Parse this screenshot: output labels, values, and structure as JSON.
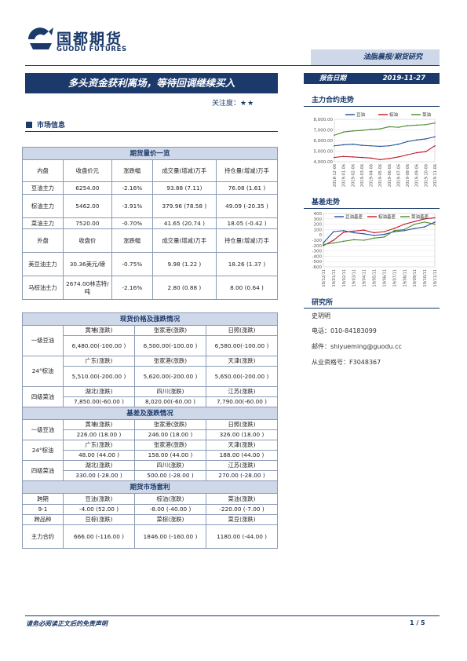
{
  "header": {
    "logo_cn": "国都期货",
    "logo_en": "GUODU FUTURES",
    "report_type": "油脂晨报/期货研究",
    "title": "多头资金获利离场，等待回调继续买入",
    "date_label": "报告日期",
    "date_value": "2019-11-27",
    "attention_label": "关注度：",
    "attention_stars": "★★"
  },
  "section": {
    "title": "市场信息"
  },
  "tables": {
    "futures": {
      "title": "期货量价一览",
      "domestic_header": [
        "内盘",
        "收盘价元",
        "涨跌幅",
        "成交量(增减)万手",
        "持仓量(增减)万手"
      ],
      "domestic_rows": [
        [
          "豆油主力",
          "6254.00",
          "-2.16%",
          "93.88 (7.11)",
          "76.08 (1.61 )"
        ],
        [
          "棕油主力",
          "5462.00",
          "-3.91%",
          "379.96 (78.58 )",
          "49.09 (-20.35 )"
        ],
        [
          "菜油主力",
          "7520.00",
          "-0.70%",
          "41.65 (20.74 )",
          "18.05 (-0.42 )"
        ]
      ],
      "foreign_header": [
        "外盘",
        "收盘价",
        "涨跌幅",
        "成交量(增减)万手",
        "持仓量(增减)万手"
      ],
      "foreign_rows": [
        [
          "美豆油主力",
          "30.36美元/磅",
          "-0.75%",
          "9.98 (1.22 )",
          "18.26 (1.37 )"
        ],
        [
          "马棕油主力",
          "2674.00林吉特/吨",
          "-2.16%",
          "2.80 (0.88 )",
          "8.00 (0.64 )"
        ]
      ]
    },
    "spot": {
      "title": "现货价格及涨跌情况",
      "rows": [
        {
          "product": "一级豆油",
          "h": [
            "黄埔(涨跌)",
            "张家港(涨跌)",
            "日照(涨跌)"
          ],
          "v": [
            "6,480.00(-100.00 )",
            "6,500.00(-100.00 )",
            "6,580.00(-100.00 )"
          ]
        },
        {
          "product": "24°棕油",
          "h": [
            "广东(涨跌)",
            "张家港(涨跌)",
            "天津(涨跌)"
          ],
          "v": [
            "5,510.00(-200.00 )",
            "5,620.00(-200.00 )",
            "5,650.00(-200.00 )"
          ]
        },
        {
          "product": "四级菜油",
          "h": [
            "湖北(涨跌)",
            "四川(涨跌)",
            "江苏(涨跌)"
          ],
          "v": [
            "7,850.00(-60.00 )",
            "8,020.00(-60.00 )",
            "7,790.00(-60.00 )"
          ]
        }
      ]
    },
    "basis": {
      "title": "基差及涨跌情况",
      "rows": [
        {
          "product": "一级豆油",
          "h": [
            "黄埔(涨跌)",
            "张家港(涨跌)",
            "日照(涨跌)"
          ],
          "v": [
            "226.00 (18.00 )",
            "246.00 (18.00 )",
            "326.00 (18.00 )"
          ]
        },
        {
          "product": "24°棕油",
          "h": [
            "广东(涨跌)",
            "张家港(涨跌)",
            "天津(涨跌)"
          ],
          "v": [
            "48.00 (44.00 )",
            "158.00 (44.00 )",
            "188.00 (44.00 )"
          ]
        },
        {
          "product": "四级菜油",
          "h": [
            "湖北(涨跌)",
            "四川(涨跌)",
            "江苏(涨跌)"
          ],
          "v": [
            "330.00 (-28.00 )",
            "500.00 (-28.00 )",
            "270.00 (-28.00 )"
          ]
        }
      ]
    },
    "arbitrage": {
      "title": "期货市场套利",
      "row1_header": [
        "跨期",
        "豆油(涨跌)",
        "棕油(涨跌)",
        "菜油(涨跌)"
      ],
      "row1": [
        "9-1",
        "-4.00 (52.00 )",
        "-8.00    (-40.00 )",
        "-220.00    (-7.00 )"
      ],
      "row2_header": [
        "跨品种",
        "豆棕(涨跌)",
        "菜棕(涨跌)",
        "菜豆(涨跌)"
      ],
      "row2": [
        "主力合约",
        "666.00 (-116.00 )",
        "1846.00 (-160.00 )",
        "1180.00 (-44.00 )"
      ]
    }
  },
  "sidebar": {
    "trend_title": "主力合约走势",
    "basis_title": "基差走势",
    "research_title": "研究所",
    "analyst": "史玥明",
    "phone": "电话：010-84183099",
    "email": "邮件：shiyueming@guodu.cc",
    "license": "从业资格号：F3048367"
  },
  "chart_data": [
    {
      "type": "line",
      "title": "主力合约走势",
      "x": [
        "2018-12-06",
        "2019-01-06",
        "2019-02-06",
        "2019-03-06",
        "2019-04-06",
        "2019-05-06",
        "2019-06-06",
        "2019-07-06",
        "2019-08-06",
        "2019-09-06",
        "2019-10-06",
        "2019-11-06"
      ],
      "series": [
        {
          "name": "豆油",
          "color": "#1f4e9c",
          "values": [
            5500,
            5600,
            5650,
            5550,
            5500,
            5450,
            5500,
            5650,
            5900,
            6050,
            6150,
            6350
          ]
        },
        {
          "name": "棕油",
          "color": "#c0182b",
          "values": [
            4400,
            4500,
            4450,
            4400,
            4350,
            4200,
            4300,
            4450,
            4650,
            4850,
            4950,
            5500
          ]
        },
        {
          "name": "菜油",
          "color": "#4a8a2a",
          "values": [
            6500,
            6800,
            6900,
            6950,
            7050,
            7100,
            7300,
            7250,
            7400,
            7450,
            7500,
            7650
          ]
        }
      ],
      "yticks": [
        "8,000.00",
        "7,000.00",
        "6,000.00",
        "5,000.00",
        "4,000.00"
      ],
      "ylim": [
        4000,
        8000
      ]
    },
    {
      "type": "line",
      "title": "基差走势",
      "x": [
        "18/12/11",
        "19/01/11",
        "19/02/11",
        "19/03/11",
        "19/04/11",
        "19/05/11",
        "19/06/11",
        "19/07/11",
        "19/08/11",
        "19/09/11",
        "19/10/11",
        "19/11/11"
      ],
      "series": [
        {
          "name": "豆油基差",
          "color": "#1f4e9c",
          "values": [
            -150,
            60,
            80,
            40,
            20,
            -10,
            10,
            60,
            80,
            120,
            150,
            240
          ]
        },
        {
          "name": "棕油基差",
          "color": "#c0182b",
          "values": [
            -200,
            -100,
            50,
            70,
            90,
            40,
            60,
            120,
            200,
            250,
            300,
            320
          ]
        },
        {
          "name": "菜油基差",
          "color": "#4a8a2a",
          "values": [
            -180,
            -150,
            -120,
            -90,
            -100,
            -60,
            -40,
            80,
            100,
            200,
            240,
            200
          ]
        }
      ],
      "yticks": [
        "400",
        "300",
        "200",
        "100",
        "0",
        "-100",
        "-200",
        "-300",
        "-400",
        "-500",
        "-600"
      ],
      "ylim": [
        -600,
        400
      ]
    }
  ],
  "footer": {
    "disclaimer": "请务必阅读正文后的免责声明",
    "page": "1 / 5"
  }
}
